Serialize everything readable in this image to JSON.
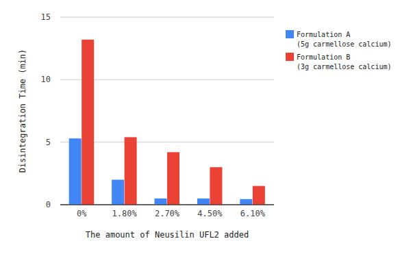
{
  "chart_data": {
    "type": "bar",
    "x_label": "The amount of Neusilin UFL2 added",
    "y_label": "Disintegration Time (min)",
    "categories": [
      "0%",
      "1.80%",
      "2.70%",
      "4.50%",
      "6.10%"
    ],
    "series": [
      {
        "name": "Formulation A\n(5g carmellose calcium)",
        "color": "#4285f4",
        "values": [
          5.3,
          2.0,
          0.5,
          0.5,
          0.45
        ]
      },
      {
        "name": "Formulation B\n(3g carmellose calcium)",
        "color": "#ea4335",
        "values": [
          13.2,
          5.4,
          4.2,
          3.0,
          1.5
        ]
      }
    ],
    "ylim": [
      0,
      15
    ],
    "yticks": [
      0,
      5,
      10,
      15
    ],
    "grid": true,
    "legend": "right"
  }
}
